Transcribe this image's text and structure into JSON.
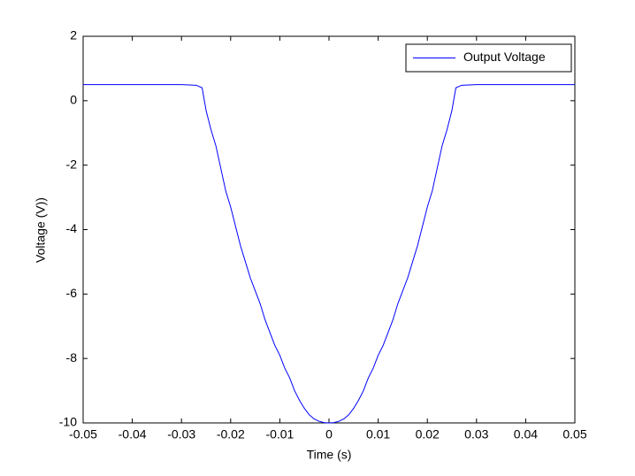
{
  "chart_data": {
    "type": "line",
    "xlabel": "Time (s)",
    "ylabel": "Voltage (V))",
    "x": [
      -0.05,
      -0.03,
      -0.027,
      -0.0258,
      -0.025,
      -0.024,
      -0.023,
      -0.022,
      -0.021,
      -0.02,
      -0.019,
      -0.018,
      -0.017,
      -0.016,
      -0.015,
      -0.014,
      -0.013,
      -0.012,
      -0.011,
      -0.01,
      -0.009,
      -0.008,
      -0.007,
      -0.006,
      -0.005,
      -0.004,
      -0.003,
      -0.002,
      -0.001,
      0,
      0.001,
      0.002,
      0.003,
      0.004,
      0.005,
      0.006,
      0.007,
      0.008,
      0.009,
      0.01,
      0.011,
      0.012,
      0.013,
      0.014,
      0.015,
      0.016,
      0.017,
      0.018,
      0.019,
      0.02,
      0.021,
      0.022,
      0.023,
      0.024,
      0.025,
      0.0258,
      0.027,
      0.03,
      0.05
    ],
    "series": [
      {
        "name": "Output Voltage",
        "color": "#0000ff",
        "values": [
          0.5,
          0.5,
          0.48,
          0.4,
          -0.3,
          -0.9,
          -1.4,
          -2.1,
          -2.8,
          -3.3,
          -3.9,
          -4.5,
          -5.0,
          -5.5,
          -5.9,
          -6.3,
          -6.8,
          -7.2,
          -7.6,
          -7.9,
          -8.3,
          -8.6,
          -9.0,
          -9.3,
          -9.55,
          -9.75,
          -9.88,
          -9.95,
          -9.99,
          -10,
          -9.99,
          -9.95,
          -9.88,
          -9.75,
          -9.55,
          -9.3,
          -9.0,
          -8.6,
          -8.3,
          -7.9,
          -7.6,
          -7.2,
          -6.8,
          -6.3,
          -5.9,
          -5.5,
          -5.0,
          -4.5,
          -3.9,
          -3.3,
          -2.8,
          -2.1,
          -1.4,
          -0.9,
          -0.3,
          0.4,
          0.48,
          0.5,
          0.5
        ]
      }
    ],
    "xlim": [
      -0.05,
      0.05
    ],
    "xticks": [
      -0.05,
      -0.04,
      -0.03,
      -0.02,
      -0.01,
      0,
      0.01,
      0.02,
      0.03,
      0.04,
      0.05
    ],
    "ylim": [
      -10,
      2
    ],
    "yticks": [
      -10,
      -8,
      -6,
      -4,
      -2,
      0,
      2
    ],
    "grid": false,
    "legend": "northeast"
  }
}
